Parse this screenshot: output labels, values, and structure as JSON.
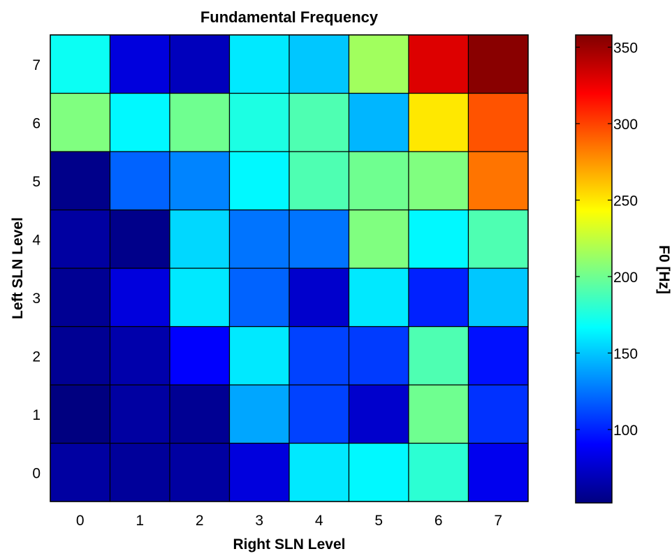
{
  "chart_data": {
    "type": "heatmap",
    "title": "Fundamental Frequency",
    "xlabel": "Right SLN Level",
    "ylabel": "Left SLN Level",
    "colorbar_label": "F0 [Hz]",
    "colormap": "jet",
    "x_categories": [
      "0",
      "1",
      "2",
      "3",
      "4",
      "5",
      "6",
      "7"
    ],
    "y_categories": [
      "0",
      "1",
      "2",
      "3",
      "4",
      "5",
      "6",
      "7"
    ],
    "y_direction": "bottom-to-top",
    "values": [
      [
        62,
        60,
        62,
        80,
        160,
        165,
        180,
        85
      ],
      [
        52,
        62,
        58,
        140,
        110,
        75,
        200,
        105
      ],
      [
        58,
        65,
        90,
        160,
        110,
        108,
        190,
        95
      ],
      [
        58,
        80,
        160,
        120,
        75,
        160,
        100,
        150
      ],
      [
        62,
        55,
        155,
        125,
        125,
        205,
        165,
        190
      ],
      [
        55,
        120,
        130,
        165,
        190,
        200,
        205,
        285
      ],
      [
        205,
        165,
        200,
        175,
        190,
        145,
        250,
        295
      ],
      [
        170,
        80,
        70,
        160,
        150,
        215,
        330,
        355
      ]
    ],
    "color_range": [
      52,
      358
    ],
    "colorbar_ticks": [
      100,
      150,
      200,
      250,
      300,
      350
    ],
    "grid": true
  }
}
